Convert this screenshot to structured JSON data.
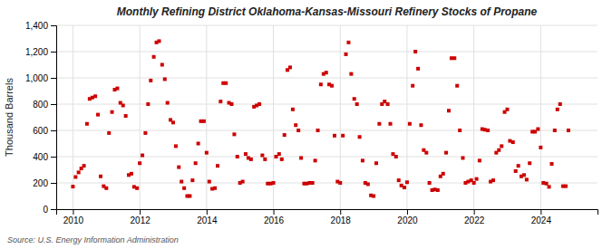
{
  "chart_data": {
    "type": "scatter",
    "title": "Monthly Refining District Oklahoma-Kansas-Missouri Refinery Stocks of Propane",
    "ylabel": "Thousand Barrels",
    "source": "Source: U.S. Energy Information Administration",
    "color": "#cc0000",
    "marker": "square",
    "grid": true,
    "xlim": [
      2009.5,
      2025.7
    ],
    "xticks": [
      2010,
      2012,
      2014,
      2016,
      2018,
      2020,
      2022,
      2024
    ],
    "ylim": [
      0,
      1400
    ],
    "yticks": [
      0,
      200,
      400,
      600,
      800,
      {
        "value": 1000,
        "label": "1,000"
      },
      {
        "value": 1200,
        "label": "1,200"
      },
      {
        "value": 1400,
        "label": "1,400"
      }
    ],
    "x": [
      2010.0,
      2010.08,
      2010.17,
      2010.25,
      2010.33,
      2010.42,
      2010.5,
      2010.58,
      2010.67,
      2010.75,
      2010.83,
      2010.92,
      2011.0,
      2011.08,
      2011.17,
      2011.25,
      2011.33,
      2011.42,
      2011.5,
      2011.58,
      2011.67,
      2011.75,
      2011.83,
      2011.92,
      2012.0,
      2012.08,
      2012.17,
      2012.25,
      2012.33,
      2012.42,
      2012.5,
      2012.58,
      2012.67,
      2012.75,
      2012.83,
      2012.92,
      2013.0,
      2013.08,
      2013.17,
      2013.25,
      2013.33,
      2013.42,
      2013.5,
      2013.58,
      2013.67,
      2013.75,
      2013.83,
      2013.92,
      2014.0,
      2014.08,
      2014.17,
      2014.25,
      2014.33,
      2014.42,
      2014.5,
      2014.58,
      2014.67,
      2014.75,
      2014.83,
      2014.92,
      2015.0,
      2015.08,
      2015.17,
      2015.25,
      2015.33,
      2015.42,
      2015.5,
      2015.58,
      2015.67,
      2015.75,
      2015.83,
      2015.92,
      2016.0,
      2016.08,
      2016.17,
      2016.25,
      2016.33,
      2016.42,
      2016.5,
      2016.58,
      2016.67,
      2016.75,
      2016.83,
      2016.92,
      2017.0,
      2017.08,
      2017.17,
      2017.25,
      2017.33,
      2017.42,
      2017.5,
      2017.58,
      2017.67,
      2017.75,
      2017.83,
      2017.92,
      2018.0,
      2018.08,
      2018.17,
      2018.25,
      2018.33,
      2018.42,
      2018.5,
      2018.58,
      2018.67,
      2018.75,
      2018.83,
      2018.92,
      2019.0,
      2019.08,
      2019.17,
      2019.25,
      2019.33,
      2019.42,
      2019.5,
      2019.58,
      2019.67,
      2019.75,
      2019.83,
      2019.92,
      2020.0,
      2020.08,
      2020.17,
      2020.25,
      2020.33,
      2020.42,
      2020.5,
      2020.58,
      2020.67,
      2020.75,
      2020.83,
      2020.92,
      2021.0,
      2021.08,
      2021.17,
      2021.25,
      2021.33,
      2021.42,
      2021.5,
      2021.58,
      2021.67,
      2021.75,
      2021.83,
      2021.92,
      2022.0,
      2022.08,
      2022.17,
      2022.25,
      2022.33,
      2022.42,
      2022.5,
      2022.58,
      2022.67,
      2022.75,
      2022.83,
      2022.92,
      2023.0,
      2023.08,
      2023.17,
      2023.25,
      2023.33,
      2023.42,
      2023.5,
      2023.58,
      2023.67,
      2023.75,
      2023.83,
      2023.92,
      2024.0,
      2024.08,
      2024.17,
      2024.25,
      2024.33,
      2024.42,
      2024.5,
      2024.58,
      2024.67,
      2024.75,
      2024.83
    ],
    "values": [
      172,
      245,
      280,
      310,
      330,
      650,
      840,
      850,
      860,
      720,
      250,
      175,
      160,
      580,
      740,
      910,
      920,
      810,
      790,
      710,
      260,
      270,
      170,
      160,
      350,
      410,
      580,
      800,
      980,
      1160,
      1270,
      1280,
      1100,
      990,
      810,
      680,
      660,
      480,
      320,
      210,
      160,
      100,
      100,
      220,
      350,
      500,
      670,
      670,
      430,
      210,
      155,
      160,
      330,
      820,
      960,
      960,
      810,
      800,
      570,
      400,
      200,
      210,
      420,
      390,
      380,
      780,
      790,
      800,
      410,
      380,
      195,
      195,
      200,
      400,
      420,
      380,
      565,
      1060,
      1080,
      760,
      640,
      600,
      390,
      195,
      195,
      200,
      200,
      370,
      600,
      950,
      1030,
      1040,
      950,
      940,
      560,
      210,
      200,
      560,
      1180,
      1270,
      1030,
      840,
      800,
      550,
      370,
      200,
      190,
      105,
      100,
      350,
      650,
      800,
      820,
      800,
      650,
      420,
      400,
      220,
      180,
      165,
      205,
      650,
      940,
      1200,
      1070,
      640,
      450,
      430,
      200,
      145,
      150,
      145,
      250,
      270,
      430,
      750,
      1150,
      1150,
      940,
      600,
      390,
      200,
      210,
      220,
      200,
      230,
      370,
      610,
      605,
      600,
      210,
      220,
      430,
      450,
      480,
      740,
      760,
      520,
      510,
      290,
      330,
      250,
      260,
      225,
      350,
      590,
      590,
      610,
      470,
      200,
      195,
      170,
      345,
      600,
      760,
      800,
      175,
      175,
      600
    ]
  }
}
